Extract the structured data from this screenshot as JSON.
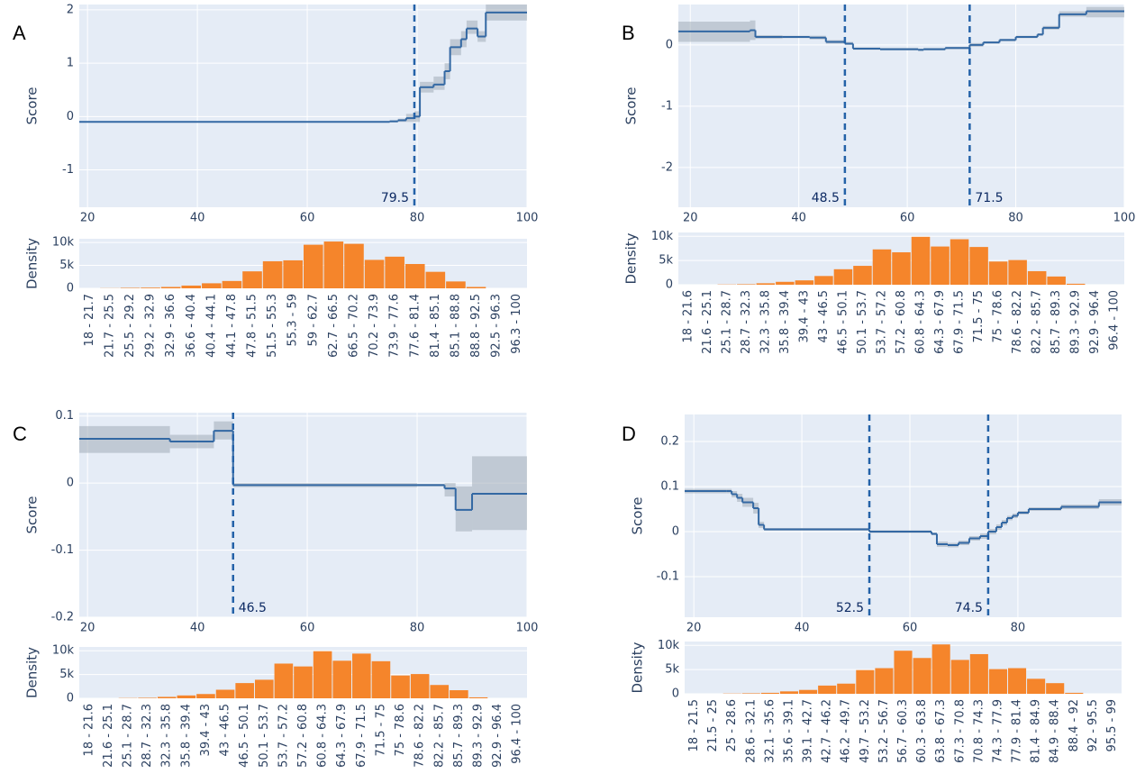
{
  "chart_data": [
    {
      "type": "line",
      "panel": "A",
      "y_label": "Score",
      "grid": true,
      "x": [
        18.5,
        75,
        76.5,
        78,
        79.5,
        80.5,
        83,
        85,
        86,
        88,
        89,
        91,
        92.5,
        100
      ],
      "series": [
        {
          "color": "#3368a3",
          "values": [
            -0.1,
            -0.09,
            -0.07,
            -0.03,
            0,
            0.55,
            0.6,
            0.85,
            1.3,
            1.45,
            1.65,
            1.5,
            1.95,
            1.95
          ],
          "lower": [
            -0.11,
            -0.11,
            -0.1,
            -0.1,
            -0.1,
            0.45,
            0.5,
            0.7,
            1.15,
            1.3,
            1.55,
            1.4,
            1.8,
            1.8
          ],
          "upper": [
            -0.09,
            -0.07,
            -0.04,
            0.05,
            0.1,
            0.65,
            0.75,
            1.0,
            1.45,
            1.6,
            1.8,
            1.6,
            2.1,
            2.1
          ]
        }
      ],
      "vlines": [
        79.5
      ],
      "xlim": [
        18.5,
        100
      ],
      "ylim": [
        -1.7,
        2.1
      ],
      "xticks": [
        20,
        40,
        60,
        80,
        100
      ],
      "yticks": [
        -1,
        0,
        1,
        2
      ]
    },
    {
      "type": "bar",
      "y_label": "Density",
      "color": "#f5852b",
      "categories": [
        "18 - 21.7",
        "21.7 - 25.5",
        "25.5 - 29.2",
        "29.2 - 32.9",
        "32.9 - 36.6",
        "36.6 - 40.4",
        "40.4 - 44.1",
        "44.1 - 47.8",
        "47.8 - 51.5",
        "51.5 - 55.3",
        "55.3 - 59",
        "59 - 62.7",
        "62.7 - 66.5",
        "66.5 - 70.2",
        "70.2 - 73.9",
        "73.9 - 77.6",
        "77.6 - 81.4",
        "81.4 - 85.1",
        "85.1 - 88.8",
        "88.8 - 92.5",
        "92.5 - 96.3",
        "96.3 - 100"
      ],
      "values": [
        0,
        30,
        100,
        150,
        300,
        600,
        1100,
        1600,
        3700,
        5900,
        6100,
        9500,
        10200,
        9700,
        6200,
        6900,
        5300,
        3600,
        1500,
        300,
        0,
        0
      ],
      "ylim": [
        0,
        10800
      ],
      "yticks": [
        0,
        {
          "value": 5000,
          "label": "5k"
        },
        {
          "value": 10000,
          "label": "10k"
        }
      ],
      "grid": true
    },
    {
      "type": "line",
      "panel": "B",
      "y_label": "Score",
      "grid": true,
      "x": [
        17.8,
        31,
        32,
        37,
        42,
        45,
        48.5,
        50,
        55,
        62,
        63,
        67,
        71.5,
        74,
        77,
        80,
        84,
        85,
        88,
        93,
        100
      ],
      "series": [
        {
          "color": "#3368a3",
          "values": [
            0.22,
            0.24,
            0.13,
            0.13,
            0.12,
            0.05,
            0.02,
            -0.06,
            -0.07,
            -0.08,
            -0.07,
            -0.05,
            0,
            0.04,
            0.08,
            0.13,
            0.17,
            0.28,
            0.5,
            0.55,
            0.55
          ],
          "lower": [
            0.05,
            0.08,
            0.1,
            0.11,
            0.09,
            0.02,
            0,
            -0.08,
            -0.09,
            -0.1,
            -0.09,
            -0.07,
            -0.03,
            0.02,
            0.06,
            0.11,
            0.15,
            0.25,
            0.46,
            0.45,
            0.45
          ],
          "upper": [
            0.38,
            0.4,
            0.16,
            0.15,
            0.15,
            0.08,
            0.05,
            -0.04,
            -0.05,
            -0.06,
            -0.05,
            -0.03,
            0.03,
            0.06,
            0.1,
            0.15,
            0.19,
            0.31,
            0.55,
            0.62,
            0.62
          ]
        }
      ],
      "vlines": [
        48.5,
        71.5
      ],
      "xlim": [
        17.8,
        100
      ],
      "ylim": [
        -2.65,
        0.66
      ],
      "xticks": [
        20,
        40,
        60,
        80,
        100
      ],
      "yticks": [
        -2,
        -1,
        0
      ]
    },
    {
      "type": "bar",
      "y_label": "Density",
      "color": "#f5852b",
      "categories": [
        "18 - 21.6",
        "21.6 - 25.1",
        "25.1 - 28.7",
        "28.7 - 32.3",
        "32.3 - 35.8",
        "35.8 - 39.4",
        "39.4 - 43",
        "43 - 46.5",
        "46.5 - 50.1",
        "50.1 - 53.7",
        "53.7 - 57.2",
        "57.2 - 60.8",
        "60.8 - 64.3",
        "64.3 - 67.9",
        "67.9 - 71.5",
        "71.5 - 75",
        "75 - 78.6",
        "78.6 - 82.2",
        "82.2 - 85.7",
        "85.7 - 89.3",
        "89.3 - 92.9",
        "92.9 - 96.4",
        "96.4 - 100"
      ],
      "values": [
        0,
        0,
        50,
        100,
        300,
        600,
        900,
        1800,
        3200,
        3900,
        7300,
        6700,
        9900,
        7900,
        9400,
        7800,
        4800,
        5100,
        2800,
        1700,
        200,
        0,
        0
      ],
      "ylim": [
        0,
        10800
      ],
      "yticks": [
        0,
        {
          "value": 5000,
          "label": "5k"
        },
        {
          "value": 10000,
          "label": "10k"
        }
      ],
      "grid": true
    },
    {
      "type": "line",
      "panel": "C",
      "y_label": "Score",
      "grid": true,
      "x": [
        18.5,
        35,
        43,
        46.5,
        80,
        85,
        87,
        90,
        100
      ],
      "series": [
        {
          "color": "#3368a3",
          "values": [
            0.066,
            0.062,
            0.078,
            -0.003,
            -0.003,
            -0.008,
            -0.04,
            -0.016,
            -0.016
          ],
          "lower": [
            0.045,
            0.052,
            0.065,
            -0.006,
            -0.005,
            -0.02,
            -0.072,
            -0.07,
            -0.07
          ],
          "upper": [
            0.085,
            0.072,
            0.092,
            0,
            -0.001,
            0,
            -0.005,
            0.04,
            0.04
          ]
        }
      ],
      "vlines": [
        46.5
      ],
      "xlim": [
        18.5,
        100
      ],
      "ylim": [
        -0.2,
        0.105
      ],
      "xticks": [
        20,
        40,
        60,
        80,
        100
      ],
      "yticks": [
        -0.2,
        -0.1,
        0,
        0.1
      ]
    },
    {
      "type": "bar",
      "y_label": "Density",
      "color": "#f5852b",
      "categories": [
        "18 - 21.6",
        "21.6 - 25.1",
        "25.1 - 28.7",
        "28.7 - 32.3",
        "32.3 - 35.8",
        "35.8 - 39.4",
        "39.4 - 43",
        "43 - 46.5",
        "46.5 - 50.1",
        "50.1 - 53.7",
        "53.7 - 57.2",
        "57.2 - 60.8",
        "60.8 - 64.3",
        "64.3 - 67.9",
        "67.9 - 71.5",
        "71.5 - 75",
        "75 - 78.6",
        "78.6 - 82.2",
        "82.2 - 85.7",
        "85.7 - 89.3",
        "89.3 - 92.9",
        "92.9 - 96.4",
        "96.4 - 100"
      ],
      "values": [
        0,
        0,
        50,
        100,
        300,
        600,
        900,
        1800,
        3200,
        3900,
        7300,
        6700,
        9900,
        7900,
        9400,
        7800,
        4800,
        5100,
        2800,
        1700,
        200,
        0,
        0
      ],
      "ylim": [
        0,
        10800
      ],
      "yticks": [
        0,
        {
          "value": 5000,
          "label": "5k"
        },
        {
          "value": 10000,
          "label": "10k"
        }
      ],
      "grid": true
    },
    {
      "type": "line",
      "panel": "D",
      "y_label": "Score",
      "grid": true,
      "x": [
        18.3,
        26,
        27,
        28,
        29,
        31,
        32,
        33,
        52.5,
        64,
        65,
        67,
        69,
        71,
        73,
        74.5,
        76,
        77,
        78,
        79,
        80,
        82,
        88,
        95,
        99.2
      ],
      "series": [
        {
          "color": "#3368a3",
          "values": [
            0.09,
            0.09,
            0.083,
            0.075,
            0.065,
            0.052,
            0.015,
            0.005,
            0.0,
            -0.005,
            -0.028,
            -0.03,
            -0.025,
            -0.015,
            -0.01,
            0.0,
            0.01,
            0.02,
            0.03,
            0.035,
            0.042,
            0.05,
            0.055,
            0.065,
            0.065
          ],
          "lower": [
            0.085,
            0.085,
            0.076,
            0.066,
            0.055,
            0.04,
            0.008,
            0.002,
            -0.003,
            -0.008,
            -0.034,
            -0.035,
            -0.03,
            -0.02,
            -0.016,
            -0.006,
            0.004,
            0.014,
            0.025,
            0.03,
            0.038,
            0.046,
            0.05,
            0.058,
            0.058
          ],
          "upper": [
            0.095,
            0.095,
            0.09,
            0.084,
            0.075,
            0.064,
            0.022,
            0.008,
            0.003,
            -0.002,
            -0.022,
            -0.025,
            -0.02,
            -0.01,
            -0.004,
            0.006,
            0.016,
            0.026,
            0.035,
            0.04,
            0.046,
            0.054,
            0.06,
            0.072,
            0.072
          ]
        }
      ],
      "vlines": [
        52.5,
        74.5
      ],
      "xlim": [
        18.3,
        99.2
      ],
      "ylim": [
        -0.19,
        0.26
      ],
      "xticks": [
        20,
        40,
        60,
        80
      ],
      "yticks": [
        -0.1,
        0,
        0.1,
        0.2
      ]
    },
    {
      "type": "bar",
      "y_label": "Density",
      "color": "#f5852b",
      "categories": [
        "18 - 21.5",
        "21.5 - 25",
        "25 - 28.6",
        "28.6 - 32.1",
        "32.1 - 35.6",
        "35.6 - 39.1",
        "39.1 - 42.7",
        "42.7 - 46.2",
        "46.2 - 49.7",
        "49.7 - 53.2",
        "53.2 - 56.7",
        "56.7 - 60.3",
        "60.3 - 63.8",
        "63.8 - 67.3",
        "67.3 - 70.8",
        "70.8 - 74.3",
        "74.3 - 77.9",
        "77.9 - 81.4",
        "81.4 - 84.9",
        "84.9 - 88.4",
        "88.4 - 92",
        "92 - 95.5",
        "95.5 - 99"
      ],
      "values": [
        0,
        0,
        50,
        100,
        200,
        500,
        800,
        1700,
        2100,
        4900,
        5300,
        8900,
        7400,
        10200,
        7000,
        8200,
        5100,
        5300,
        3100,
        2200,
        200,
        0,
        0
      ],
      "ylim": [
        0,
        10800
      ],
      "yticks": [
        0,
        {
          "value": 5000,
          "label": "5k"
        },
        {
          "value": 10000,
          "label": "10k"
        }
      ],
      "grid": true
    }
  ]
}
